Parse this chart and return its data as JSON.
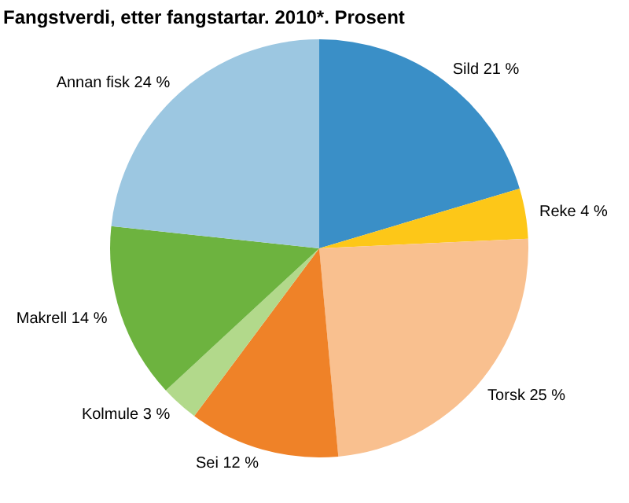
{
  "chart_data": {
    "type": "pie",
    "title": "Fangstverdi, etter fangstartar. 2010*. Prosent",
    "categories": [
      "Sild",
      "Reke",
      "Torsk",
      "Sei",
      "Kolmule",
      "Makrell",
      "Annan fisk"
    ],
    "values": [
      21,
      4,
      25,
      12,
      3,
      14,
      24
    ],
    "value_labels": [
      "21 %",
      "4 %",
      "25 %",
      "12 %",
      "3 %",
      "14 %",
      "24 %"
    ],
    "colors": [
      "#3a8fc7",
      "#fdc718",
      "#f9c08f",
      "#ef8228",
      "#b2d98b",
      "#6db33f",
      "#9cc7e1"
    ]
  }
}
